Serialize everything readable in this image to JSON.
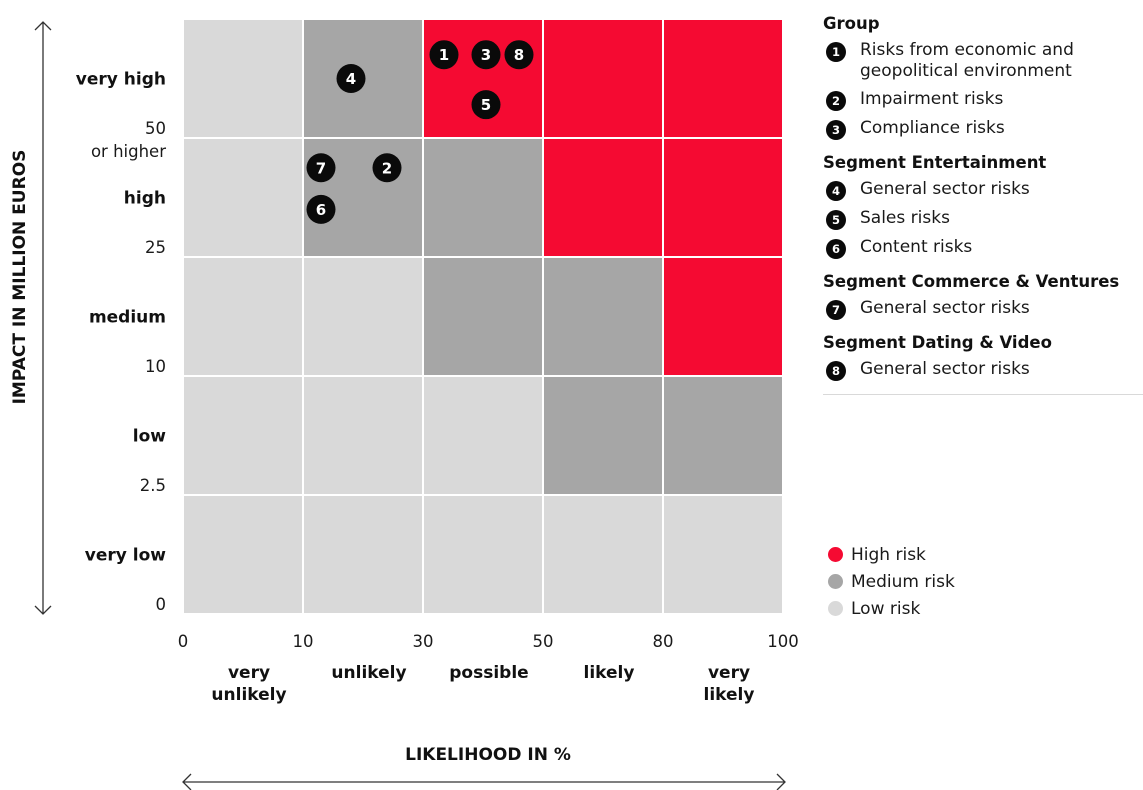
{
  "chart_data": {
    "type": "heatmap",
    "xlabel": "LIKELIHOOD IN %",
    "ylabel": "IMPACT IN MILLION EUROS",
    "x_ticks": [
      "0",
      "10",
      "30",
      "50",
      "80",
      "100"
    ],
    "y_ticks": [
      "0",
      "2.5",
      "10",
      "25",
      "50\nor higher"
    ],
    "x_categories": [
      "very\nunlikely",
      "unlikely",
      "possible",
      "likely",
      "very\nlikely"
    ],
    "y_categories": [
      "very low",
      "low",
      "medium",
      "high",
      "very high"
    ],
    "risk_levels": {
      "high": {
        "label": "High risk",
        "color": "#f50a32"
      },
      "medium": {
        "label": "Medium risk",
        "color": "#a6a6a6"
      },
      "low": {
        "label": "Low risk",
        "color": "#d9d9d9"
      }
    },
    "grid": [
      [
        "low",
        "low",
        "low",
        "low",
        "low"
      ],
      [
        "low",
        "low",
        "low",
        "medium",
        "medium"
      ],
      [
        "low",
        "low",
        "medium",
        "medium",
        "high"
      ],
      [
        "low",
        "medium",
        "medium",
        "high",
        "high"
      ],
      [
        "low",
        "medium",
        "high",
        "high",
        "high"
      ]
    ],
    "markers": [
      {
        "id": "1",
        "likelihood": 33.5,
        "impact_level": 4.7
      },
      {
        "id": "3",
        "likelihood": 40.5,
        "impact_level": 4.7
      },
      {
        "id": "8",
        "likelihood": 46,
        "impact_level": 4.7
      },
      {
        "id": "5",
        "likelihood": 40.5,
        "impact_level": 4.28
      },
      {
        "id": "4",
        "likelihood": 18,
        "impact_level": 4.5
      },
      {
        "id": "7",
        "likelihood": 13,
        "impact_level": 3.75
      },
      {
        "id": "2",
        "likelihood": 24,
        "impact_level": 3.75
      },
      {
        "id": "6",
        "likelihood": 13,
        "impact_level": 3.4
      }
    ]
  },
  "legend": {
    "groups": [
      {
        "title": "Group",
        "items": [
          {
            "id": "1",
            "label": "Risks from economic and\ngeopolitical environment"
          },
          {
            "id": "2",
            "label": "Impairment risks"
          },
          {
            "id": "3",
            "label": "Compliance risks"
          }
        ]
      },
      {
        "title": "Segment Entertainment",
        "items": [
          {
            "id": "4",
            "label": "General sector risks"
          },
          {
            "id": "5",
            "label": "Sales risks"
          },
          {
            "id": "6",
            "label": "Content risks"
          }
        ]
      },
      {
        "title": "Segment Commerce & Ventures",
        "items": [
          {
            "id": "7",
            "label": "General sector risks"
          }
        ]
      },
      {
        "title": "Segment Dating & Video",
        "items": [
          {
            "id": "8",
            "label": "General sector risks"
          }
        ]
      }
    ],
    "levels": [
      {
        "label": "High risk",
        "color": "#f50a32"
      },
      {
        "label": "Medium risk",
        "color": "#a6a6a6"
      },
      {
        "label": "Low risk",
        "color": "#d9d9d9"
      }
    ]
  }
}
